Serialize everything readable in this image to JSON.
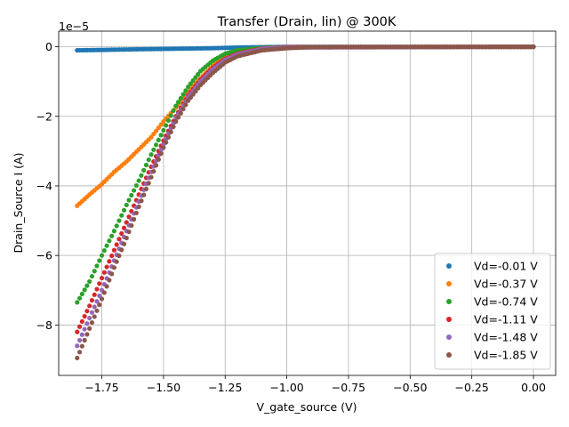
{
  "chart_data": {
    "type": "scatter",
    "title": "Transfer (Drain, lin) @ 300K",
    "xlabel": "V_gate_source (V)",
    "ylabel": "Drain_Source I (A)",
    "y_offset_label": "1e−5",
    "xlim": [
      -1.925,
      0.09
    ],
    "ylim": [
      -9.45,
      0.45
    ],
    "y_scale_exponent": -5,
    "grid": true,
    "legend_position": "lower right",
    "x_ticks": [
      -1.75,
      -1.5,
      -1.25,
      -1.0,
      -0.75,
      -0.5,
      -0.25,
      0.0
    ],
    "x_tick_labels": [
      "−1.75",
      "−1.50",
      "−1.25",
      "−1.00",
      "−0.75",
      "−0.50",
      "−0.25",
      "0.00"
    ],
    "y_ticks": [
      -8,
      -6,
      -4,
      -2,
      0
    ],
    "y_tick_labels": [
      "−8",
      "−6",
      "−4",
      "−2",
      "0"
    ],
    "x_range": [
      -1.85,
      0.0
    ],
    "series": [
      {
        "name": "Vd=-0.01 V",
        "color": "#1f77b4",
        "points": [
          [
            -1.85,
            -0.1
          ],
          [
            -1.75,
            -0.09
          ],
          [
            -1.6,
            -0.07
          ],
          [
            -1.5,
            -0.06
          ],
          [
            -1.4,
            -0.05
          ],
          [
            -1.3,
            -0.04
          ],
          [
            -1.2,
            -0.02
          ],
          [
            -1.1,
            -0.01
          ],
          [
            -1.0,
            0.0
          ],
          [
            0.0,
            0.0
          ]
        ]
      },
      {
        "name": "Vd=-0.37 V",
        "color": "#ff7f0e",
        "points": [
          [
            -1.85,
            -4.57
          ],
          [
            -1.8,
            -4.25
          ],
          [
            -1.75,
            -3.95
          ],
          [
            -1.7,
            -3.6
          ],
          [
            -1.65,
            -3.3
          ],
          [
            -1.6,
            -2.95
          ],
          [
            -1.55,
            -2.6
          ],
          [
            -1.5,
            -2.15
          ],
          [
            -1.45,
            -1.75
          ],
          [
            -1.4,
            -1.3
          ],
          [
            -1.35,
            -0.9
          ],
          [
            -1.3,
            -0.55
          ],
          [
            -1.25,
            -0.3
          ],
          [
            -1.2,
            -0.15
          ],
          [
            -1.1,
            -0.05
          ],
          [
            -1.0,
            -0.01
          ],
          [
            0.0,
            0.0
          ]
        ]
      },
      {
        "name": "Vd=-0.74 V",
        "color": "#2ca02c",
        "points": [
          [
            -1.85,
            -7.35
          ],
          [
            -1.8,
            -6.75
          ],
          [
            -1.75,
            -6.0
          ],
          [
            -1.7,
            -5.3
          ],
          [
            -1.65,
            -4.55
          ],
          [
            -1.6,
            -3.85
          ],
          [
            -1.55,
            -3.1
          ],
          [
            -1.5,
            -2.4
          ],
          [
            -1.45,
            -1.7
          ],
          [
            -1.4,
            -1.15
          ],
          [
            -1.35,
            -0.7
          ],
          [
            -1.3,
            -0.4
          ],
          [
            -1.25,
            -0.2
          ],
          [
            -1.2,
            -0.1
          ],
          [
            -1.1,
            -0.03
          ],
          [
            -1.0,
            -0.01
          ],
          [
            0.0,
            0.0
          ]
        ]
      },
      {
        "name": "Vd=-1.11 V",
        "color": "#d62728",
        "points": [
          [
            -1.85,
            -8.2
          ],
          [
            -1.8,
            -7.45
          ],
          [
            -1.75,
            -6.65
          ],
          [
            -1.7,
            -5.85
          ],
          [
            -1.65,
            -5.05
          ],
          [
            -1.6,
            -4.25
          ],
          [
            -1.55,
            -3.45
          ],
          [
            -1.5,
            -2.7
          ],
          [
            -1.45,
            -2.0
          ],
          [
            -1.4,
            -1.4
          ],
          [
            -1.35,
            -0.95
          ],
          [
            -1.3,
            -0.6
          ],
          [
            -1.25,
            -0.35
          ],
          [
            -1.2,
            -0.2
          ],
          [
            -1.1,
            -0.05
          ],
          [
            -1.0,
            -0.01
          ],
          [
            0.0,
            0.0
          ]
        ]
      },
      {
        "name": "Vd=-1.48 V",
        "color": "#9467bd",
        "points": [
          [
            -1.85,
            -8.6
          ],
          [
            -1.8,
            -7.8
          ],
          [
            -1.75,
            -7.0
          ],
          [
            -1.7,
            -6.15
          ],
          [
            -1.65,
            -5.3
          ],
          [
            -1.6,
            -4.45
          ],
          [
            -1.55,
            -3.6
          ],
          [
            -1.5,
            -2.8
          ],
          [
            -1.45,
            -2.05
          ],
          [
            -1.4,
            -1.45
          ],
          [
            -1.35,
            -1.0
          ],
          [
            -1.3,
            -0.65
          ],
          [
            -1.25,
            -0.38
          ],
          [
            -1.2,
            -0.22
          ],
          [
            -1.1,
            -0.06
          ],
          [
            -1.0,
            -0.02
          ],
          [
            0.0,
            0.0
          ]
        ]
      },
      {
        "name": "Vd=-1.85 V",
        "color": "#8c564b",
        "points": [
          [
            -1.85,
            -8.95
          ],
          [
            -1.8,
            -8.1
          ],
          [
            -1.75,
            -7.25
          ],
          [
            -1.7,
            -6.35
          ],
          [
            -1.65,
            -5.5
          ],
          [
            -1.6,
            -4.6
          ],
          [
            -1.55,
            -3.75
          ],
          [
            -1.5,
            -2.9
          ],
          [
            -1.45,
            -2.15
          ],
          [
            -1.4,
            -1.55
          ],
          [
            -1.35,
            -1.1
          ],
          [
            -1.3,
            -0.75
          ],
          [
            -1.25,
            -0.45
          ],
          [
            -1.2,
            -0.27
          ],
          [
            -1.1,
            -0.1
          ],
          [
            -1.0,
            -0.04
          ],
          [
            -0.9,
            -0.01
          ],
          [
            0.0,
            0.0
          ]
        ]
      }
    ]
  }
}
